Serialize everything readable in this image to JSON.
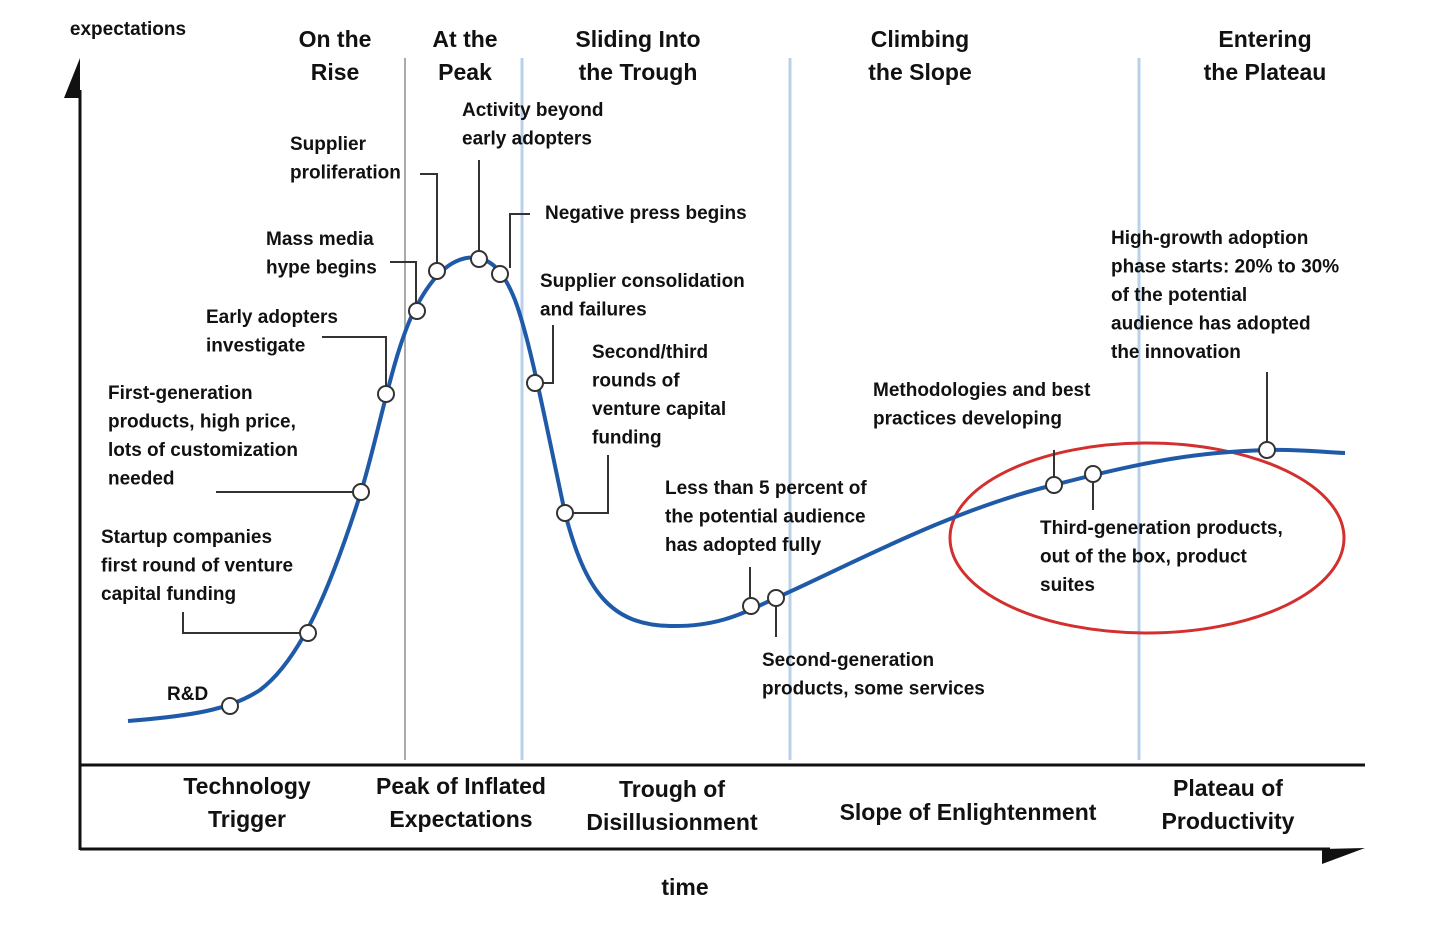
{
  "axes": {
    "y_label": "expectations",
    "x_label": "time"
  },
  "top_phases": [
    [
      "On the",
      "Rise"
    ],
    [
      "At the",
      "Peak"
    ],
    [
      "Sliding Into",
      "the Trough"
    ],
    [
      "Climbing",
      "the Slope"
    ],
    [
      "Entering",
      "the Plateau"
    ]
  ],
  "bottom_phases": [
    [
      "Technology",
      "Trigger"
    ],
    [
      "Peak of Inflated",
      "Expectations"
    ],
    [
      "Trough of",
      "Disillusionment"
    ],
    [
      "Slope of Enlightenment"
    ],
    [
      "Plateau of",
      "Productivity"
    ]
  ],
  "annotations": [
    [
      "R&D"
    ],
    [
      "Startup companies",
      "first round of venture",
      "capital funding"
    ],
    [
      "First-generation",
      "products, high price,",
      "lots of customization",
      "needed"
    ],
    [
      "Early adopters",
      "investigate"
    ],
    [
      "Mass media",
      "hype begins"
    ],
    [
      "Supplier",
      "proliferation"
    ],
    [
      "Activity beyond",
      "early adopters"
    ],
    [
      "Negative press begins"
    ],
    [
      "Supplier consolidation",
      "and failures"
    ],
    [
      "Second/third",
      "rounds of",
      "venture capital",
      "funding"
    ],
    [
      "Less than 5 percent of",
      "the potential audience",
      "has adopted fully"
    ],
    [
      "Second-generation",
      "products, some services"
    ],
    [
      "Methodologies and best",
      "practices developing"
    ],
    [
      "Third-generation products,",
      "out of the box, product",
      "suites"
    ],
    [
      "High-growth adoption",
      "phase starts: 20% to 30%",
      "of the potential",
      "audience has adopted",
      "the innovation"
    ]
  ]
}
